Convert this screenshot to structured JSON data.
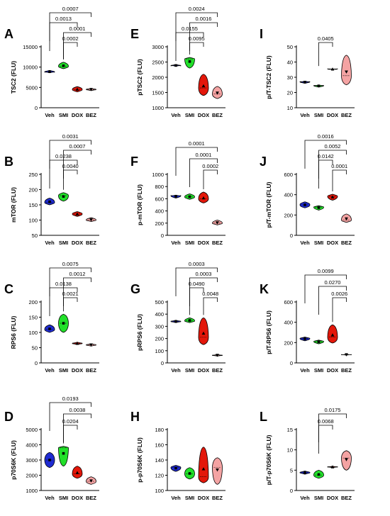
{
  "colors": {
    "Veh": "#1f2bd1",
    "SMI": "#22e02a",
    "DOX": "#e3170a",
    "BEZ": "#f4a3a3"
  },
  "chart_data": [
    {
      "letter": "A",
      "type": "violin",
      "ylabel": "TSC2 (FLU)",
      "categories": [
        "Veh",
        "SMI",
        "DOX",
        "BEZ"
      ],
      "ylim": [
        0,
        15000
      ],
      "yticks": [
        "0",
        "5000",
        "10000",
        "15000"
      ],
      "values": [
        [
          8800,
          9200,
          8600
        ],
        [
          9600,
          10200,
          11200
        ],
        [
          4500,
          5200,
          3900
        ],
        [
          4200,
          4800,
          4500
        ]
      ],
      "brackets": [
        {
          "from": "Veh",
          "to": "BEZ",
          "p": "0.0007"
        },
        {
          "from": "Veh",
          "to": "DOX",
          "p": "0.0013"
        },
        {
          "from": "SMI",
          "to": "BEZ",
          "p": "0.0001"
        },
        {
          "from": "SMI",
          "to": "DOX",
          "p": "0.0002"
        }
      ]
    },
    {
      "letter": "E",
      "type": "violin",
      "ylabel": "pTSC2 (FLU)",
      "categories": [
        "Veh",
        "SMI",
        "DOX",
        "BEZ"
      ],
      "ylim": [
        1000,
        3000
      ],
      "yticks": [
        "1000",
        "1500",
        "2000",
        "2500",
        "3000"
      ],
      "values": [
        [
          2380,
          2420,
          2360
        ],
        [
          2300,
          2600,
          2650
        ],
        [
          1400,
          1650,
          2100
        ],
        [
          1300,
          1450,
          1700
        ]
      ],
      "brackets": [
        {
          "from": "Veh",
          "to": "BEZ",
          "p": "0.0024"
        },
        {
          "from": "SMI",
          "to": "BEZ",
          "p": "0.0016"
        },
        {
          "from": "Veh",
          "to": "DOX",
          "p": "0.0155"
        },
        {
          "from": "SMI",
          "to": "DOX",
          "p": "0.0095"
        }
      ]
    },
    {
      "letter": "I",
      "type": "violin",
      "ylabel": "p/T-TSC2 (FLU)",
      "categories": [
        "Veh",
        "SMI",
        "DOX",
        "BEZ"
      ],
      "ylim": [
        10,
        50
      ],
      "yticks": [
        "10",
        "20",
        "30",
        "40",
        "50"
      ],
      "values": [
        [
          26,
          27,
          27.5
        ],
        [
          23.5,
          24.5,
          25
        ],
        [
          35,
          35.5,
          35.5
        ],
        [
          25,
          31,
          44.5
        ]
      ],
      "brackets": [
        {
          "from": "SMI",
          "to": "DOX",
          "p": "0.0405"
        }
      ]
    },
    {
      "letter": "B",
      "type": "violin",
      "ylabel": "mTOR (FLU)",
      "categories": [
        "Veh",
        "SMI",
        "DOX",
        "BEZ"
      ],
      "ylim": [
        50,
        250
      ],
      "yticks": [
        "50",
        "100",
        "150",
        "200",
        "250"
      ],
      "values": [
        [
          150,
          158,
          172
        ],
        [
          162,
          180,
          190
        ],
        [
          112,
          120,
          128
        ],
        [
          95,
          100,
          108
        ]
      ],
      "brackets": [
        {
          "from": "Veh",
          "to": "BEZ",
          "p": "0.0031"
        },
        {
          "from": "SMI",
          "to": "BEZ",
          "p": "0.0007"
        },
        {
          "from": "Veh",
          "to": "DOX",
          "p": "0.0238"
        },
        {
          "from": "SMI",
          "to": "DOX",
          "p": "0.0040"
        }
      ]
    },
    {
      "letter": "F",
      "type": "violin",
      "ylabel": "p-mTOR (FLU)",
      "categories": [
        "Veh",
        "SMI",
        "DOX",
        "BEZ"
      ],
      "ylim": [
        0,
        1000
      ],
      "yticks": [
        "0",
        "200",
        "400",
        "600",
        "800",
        "1000"
      ],
      "values": [
        [
          610,
          650,
          660
        ],
        [
          590,
          630,
          680
        ],
        [
          530,
          600,
          710
        ],
        [
          170,
          200,
          250
        ]
      ],
      "brackets": [
        {
          "from": "Veh",
          "to": "BEZ",
          "p": "0.0001"
        },
        {
          "from": "SMI",
          "to": "BEZ",
          "p": "0.0001"
        },
        {
          "from": "DOX",
          "to": "BEZ",
          "p": "0.0002"
        }
      ]
    },
    {
      "letter": "J",
      "type": "violin",
      "ylabel": "p/T-mTOR (FLU)",
      "categories": [
        "Veh",
        "SMI",
        "DOX",
        "BEZ"
      ],
      "ylim": [
        0,
        800
      ],
      "yticks": [
        "0",
        "200",
        "400",
        "600"
      ],
      "values": [
        [
          360,
          400,
          440
        ],
        [
          330,
          370,
          390
        ],
        [
          460,
          510,
          540
        ],
        [
          170,
          200,
          280
        ]
      ],
      "brackets": [
        {
          "from": "Veh",
          "to": "BEZ",
          "p": "0.0016"
        },
        {
          "from": "SMI",
          "to": "BEZ",
          "p": "0.0052"
        },
        {
          "from": "SMI",
          "to": "DOX",
          "p": "0.0142"
        },
        {
          "from": "DOX",
          "to": "BEZ",
          "p": "0.0001"
        }
      ]
    },
    {
      "letter": "C",
      "type": "violin",
      "ylabel": "RPS6 (FLU)",
      "categories": [
        "Veh",
        "SMI",
        "DOX",
        "BEZ"
      ],
      "ylim": [
        0,
        200
      ],
      "yticks": [
        "0",
        "50",
        "100",
        "150",
        "200"
      ],
      "values": [
        [
          100,
          110,
          125
        ],
        [
          100,
          130,
          160
        ],
        [
          60,
          64,
          68
        ],
        [
          55,
          59,
          63
        ]
      ],
      "brackets": [
        {
          "from": "Veh",
          "to": "BEZ",
          "p": "0.0075"
        },
        {
          "from": "SMI",
          "to": "BEZ",
          "p": "0.0012"
        },
        {
          "from": "Veh",
          "to": "DOX",
          "p": "0.0138"
        },
        {
          "from": "SMI",
          "to": "DOX",
          "p": "0.0021"
        }
      ]
    },
    {
      "letter": "G",
      "type": "violin",
      "ylabel": "pRPS6 (FLU)",
      "categories": [
        "Veh",
        "SMI",
        "DOX",
        "BEZ"
      ],
      "ylim": [
        0,
        500
      ],
      "yticks": [
        "0",
        "100",
        "200",
        "300",
        "400",
        "500"
      ],
      "values": [
        [
          330,
          340,
          350
        ],
        [
          330,
          345,
          370
        ],
        [
          150,
          210,
          370
        ],
        [
          55,
          62,
          70
        ]
      ],
      "brackets": [
        {
          "from": "Veh",
          "to": "BEZ",
          "p": "0.0003"
        },
        {
          "from": "SMI",
          "to": "BEZ",
          "p": "0.0003"
        },
        {
          "from": "SMI",
          "to": "DOX",
          "p": "0.0490"
        },
        {
          "from": "DOX",
          "to": "BEZ",
          "p": "0.0048"
        }
      ]
    },
    {
      "letter": "K",
      "type": "violin",
      "ylabel": "p/T-RPS6 (FLU)",
      "categories": [
        "Veh",
        "SMI",
        "DOX",
        "BEZ"
      ],
      "ylim": [
        0,
        800
      ],
      "yticks": [
        "0",
        "200",
        "400",
        "600"
      ],
      "values": [
        [
          290,
          320,
          340
        ],
        [
          250,
          280,
          300
        ],
        [
          260,
          340,
          500
        ],
        [
          100,
          108,
          115
        ]
      ],
      "brackets": [
        {
          "from": "Veh",
          "to": "BEZ",
          "p": "0.0099"
        },
        {
          "from": "SMI",
          "to": "BEZ",
          "p": "0.0270"
        },
        {
          "from": "DOX",
          "to": "BEZ",
          "p": "0.0026"
        }
      ]
    },
    {
      "letter": "D",
      "type": "violin",
      "ylabel": "p70S6K (FLU)",
      "categories": [
        "Veh",
        "SMI",
        "DOX",
        "BEZ"
      ],
      "ylim": [
        1000,
        5000
      ],
      "yticks": [
        "1000",
        "2000",
        "3000",
        "4000",
        "5000"
      ],
      "values": [
        [
          2500,
          3000,
          3500
        ],
        [
          2600,
          3800,
          3900
        ],
        [
          1800,
          2100,
          2600
        ],
        [
          1400,
          1600,
          1900
        ]
      ],
      "brackets": [
        {
          "from": "Veh",
          "to": "BEZ",
          "p": "0.0193"
        },
        {
          "from": "SMI",
          "to": "BEZ",
          "p": "0.0038"
        },
        {
          "from": "SMI",
          "to": "DOX",
          "p": "0.0204"
        }
      ]
    },
    {
      "letter": "H",
      "type": "violin",
      "ylabel": "p-p70S6K (FLU)",
      "categories": [
        "Veh",
        "SMI",
        "DOX",
        "BEZ"
      ],
      "ylim": [
        100,
        180
      ],
      "yticks": [
        "100",
        "120",
        "140",
        "160",
        "180"
      ],
      "values": [
        [
          125,
          130,
          133
        ],
        [
          115,
          122,
          130
        ],
        [
          110,
          118,
          157
        ],
        [
          108,
          130,
          143
        ]
      ],
      "brackets": []
    },
    {
      "letter": "L",
      "type": "violin",
      "ylabel": "p/T-p70S6K (FLU)",
      "categories": [
        "Veh",
        "SMI",
        "DOX",
        "BEZ"
      ],
      "ylim": [
        0,
        15
      ],
      "yticks": [
        "0",
        "5",
        "10",
        "15"
      ],
      "values": [
        [
          4,
          4.4,
          4.8
        ],
        [
          3,
          3.8,
          5
        ],
        [
          5.6,
          5.8,
          6
        ],
        [
          5,
          8,
          9.8
        ]
      ],
      "brackets": [
        {
          "from": "SMI",
          "to": "BEZ",
          "p": "0.0175"
        },
        {
          "from": "SMI",
          "to": "DOX",
          "p": "0.0068"
        }
      ]
    }
  ]
}
